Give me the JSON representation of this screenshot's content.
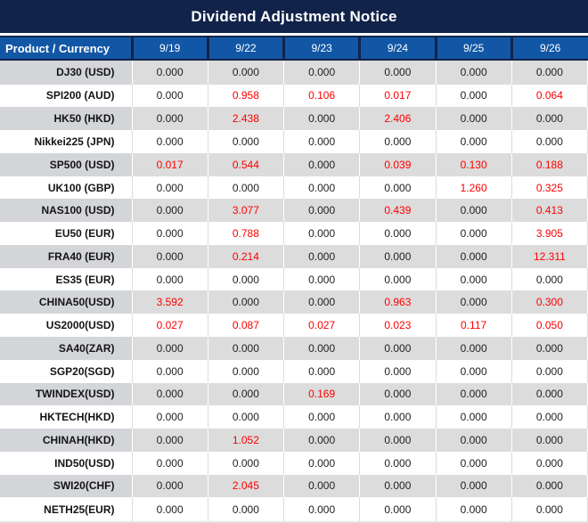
{
  "title": "Dividend Adjustment Notice",
  "colors": {
    "title_bar_bg": "#12234a",
    "header_bg": "#1257a5",
    "row_gray": "#dcdcdc",
    "row_white": "#ffffff",
    "value_black": "#1f1f1f",
    "value_red": "#fe0000"
  },
  "table": {
    "product_header": "Product / Currency",
    "dates": [
      "9/19",
      "9/22",
      "9/23",
      "9/24",
      "9/25",
      "9/26"
    ],
    "rows": [
      {
        "product": "DJ30 (USD)",
        "values": [
          {
            "v": "0.000",
            "red": false
          },
          {
            "v": "0.000",
            "red": false
          },
          {
            "v": "0.000",
            "red": false
          },
          {
            "v": "0.000",
            "red": false
          },
          {
            "v": "0.000",
            "red": false
          },
          {
            "v": "0.000",
            "red": false
          }
        ]
      },
      {
        "product": "SPI200 (AUD)",
        "values": [
          {
            "v": "0.000",
            "red": false
          },
          {
            "v": "0.958",
            "red": true
          },
          {
            "v": "0.106",
            "red": true
          },
          {
            "v": "0.017",
            "red": true
          },
          {
            "v": "0.000",
            "red": false
          },
          {
            "v": "0.064",
            "red": true
          }
        ]
      },
      {
        "product": "HK50 (HKD)",
        "values": [
          {
            "v": "0.000",
            "red": false
          },
          {
            "v": "2.438",
            "red": true
          },
          {
            "v": "0.000",
            "red": false
          },
          {
            "v": "2.406",
            "red": true
          },
          {
            "v": "0.000",
            "red": false
          },
          {
            "v": "0.000",
            "red": false
          }
        ]
      },
      {
        "product": "Nikkei225 (JPN)",
        "values": [
          {
            "v": "0.000",
            "red": false
          },
          {
            "v": "0.000",
            "red": false
          },
          {
            "v": "0.000",
            "red": false
          },
          {
            "v": "0.000",
            "red": false
          },
          {
            "v": "0.000",
            "red": false
          },
          {
            "v": "0.000",
            "red": false
          }
        ]
      },
      {
        "product": "SP500 (USD)",
        "values": [
          {
            "v": "0.017",
            "red": true
          },
          {
            "v": "0.544",
            "red": true
          },
          {
            "v": "0.000",
            "red": false
          },
          {
            "v": "0.039",
            "red": true
          },
          {
            "v": "0.130",
            "red": true
          },
          {
            "v": "0.188",
            "red": true
          }
        ]
      },
      {
        "product": "UK100 (GBP)",
        "values": [
          {
            "v": "0.000",
            "red": false
          },
          {
            "v": "0.000",
            "red": false
          },
          {
            "v": "0.000",
            "red": false
          },
          {
            "v": "0.000",
            "red": false
          },
          {
            "v": "1.260",
            "red": true
          },
          {
            "v": "0.325",
            "red": true
          }
        ]
      },
      {
        "product": "NAS100 (USD)",
        "values": [
          {
            "v": "0.000",
            "red": false
          },
          {
            "v": "3.077",
            "red": true
          },
          {
            "v": "0.000",
            "red": false
          },
          {
            "v": "0.439",
            "red": true
          },
          {
            "v": "0.000",
            "red": false
          },
          {
            "v": "0.413",
            "red": true
          }
        ]
      },
      {
        "product": "EU50 (EUR)",
        "values": [
          {
            "v": "0.000",
            "red": false
          },
          {
            "v": "0.788",
            "red": true
          },
          {
            "v": "0.000",
            "red": false
          },
          {
            "v": "0.000",
            "red": false
          },
          {
            "v": "0.000",
            "red": false
          },
          {
            "v": "3.905",
            "red": true
          }
        ]
      },
      {
        "product": "FRA40 (EUR)",
        "values": [
          {
            "v": "0.000",
            "red": false
          },
          {
            "v": "0.214",
            "red": true
          },
          {
            "v": "0.000",
            "red": false
          },
          {
            "v": "0.000",
            "red": false
          },
          {
            "v": "0.000",
            "red": false
          },
          {
            "v": "12.311",
            "red": true
          }
        ]
      },
      {
        "product": "ES35 (EUR)",
        "values": [
          {
            "v": "0.000",
            "red": false
          },
          {
            "v": "0.000",
            "red": false
          },
          {
            "v": "0.000",
            "red": false
          },
          {
            "v": "0.000",
            "red": false
          },
          {
            "v": "0.000",
            "red": false
          },
          {
            "v": "0.000",
            "red": false
          }
        ]
      },
      {
        "product": "CHINA50(USD)",
        "values": [
          {
            "v": "3.592",
            "red": true
          },
          {
            "v": "0.000",
            "red": false
          },
          {
            "v": "0.000",
            "red": false
          },
          {
            "v": "0.963",
            "red": true
          },
          {
            "v": "0.000",
            "red": false
          },
          {
            "v": "0.300",
            "red": true
          }
        ]
      },
      {
        "product": "US2000(USD)",
        "values": [
          {
            "v": "0.027",
            "red": true
          },
          {
            "v": "0.087",
            "red": true
          },
          {
            "v": "0.027",
            "red": true
          },
          {
            "v": "0.023",
            "red": true
          },
          {
            "v": "0.117",
            "red": true
          },
          {
            "v": "0.050",
            "red": true
          }
        ]
      },
      {
        "product": "SA40(ZAR)",
        "values": [
          {
            "v": "0.000",
            "red": false
          },
          {
            "v": "0.000",
            "red": false
          },
          {
            "v": "0.000",
            "red": false
          },
          {
            "v": "0.000",
            "red": false
          },
          {
            "v": "0.000",
            "red": false
          },
          {
            "v": "0.000",
            "red": false
          }
        ]
      },
      {
        "product": "SGP20(SGD)",
        "values": [
          {
            "v": "0.000",
            "red": false
          },
          {
            "v": "0.000",
            "red": false
          },
          {
            "v": "0.000",
            "red": false
          },
          {
            "v": "0.000",
            "red": false
          },
          {
            "v": "0.000",
            "red": false
          },
          {
            "v": "0.000",
            "red": false
          }
        ]
      },
      {
        "product": "TWINDEX(USD)",
        "values": [
          {
            "v": "0.000",
            "red": false
          },
          {
            "v": "0.000",
            "red": false
          },
          {
            "v": "0.169",
            "red": true
          },
          {
            "v": "0.000",
            "red": false
          },
          {
            "v": "0.000",
            "red": false
          },
          {
            "v": "0.000",
            "red": false
          }
        ]
      },
      {
        "product": "HKTECH(HKD)",
        "values": [
          {
            "v": "0.000",
            "red": false
          },
          {
            "v": "0.000",
            "red": false
          },
          {
            "v": "0.000",
            "red": false
          },
          {
            "v": "0.000",
            "red": false
          },
          {
            "v": "0.000",
            "red": false
          },
          {
            "v": "0.000",
            "red": false
          }
        ]
      },
      {
        "product": "CHINAH(HKD)",
        "values": [
          {
            "v": "0.000",
            "red": false
          },
          {
            "v": "1.052",
            "red": true
          },
          {
            "v": "0.000",
            "red": false
          },
          {
            "v": "0.000",
            "red": false
          },
          {
            "v": "0.000",
            "red": false
          },
          {
            "v": "0.000",
            "red": false
          }
        ]
      },
      {
        "product": "IND50(USD)",
        "values": [
          {
            "v": "0.000",
            "red": false
          },
          {
            "v": "0.000",
            "red": false
          },
          {
            "v": "0.000",
            "red": false
          },
          {
            "v": "0.000",
            "red": false
          },
          {
            "v": "0.000",
            "red": false
          },
          {
            "v": "0.000",
            "red": false
          }
        ]
      },
      {
        "product": "SWI20(CHF)",
        "values": [
          {
            "v": "0.000",
            "red": false
          },
          {
            "v": "2.045",
            "red": true
          },
          {
            "v": "0.000",
            "red": false
          },
          {
            "v": "0.000",
            "red": false
          },
          {
            "v": "0.000",
            "red": false
          },
          {
            "v": "0.000",
            "red": false
          }
        ]
      },
      {
        "product": "NETH25(EUR)",
        "values": [
          {
            "v": "0.000",
            "red": false
          },
          {
            "v": "0.000",
            "red": false
          },
          {
            "v": "0.000",
            "red": false
          },
          {
            "v": "0.000",
            "red": false
          },
          {
            "v": "0.000",
            "red": false
          },
          {
            "v": "0.000",
            "red": false
          }
        ]
      }
    ]
  }
}
